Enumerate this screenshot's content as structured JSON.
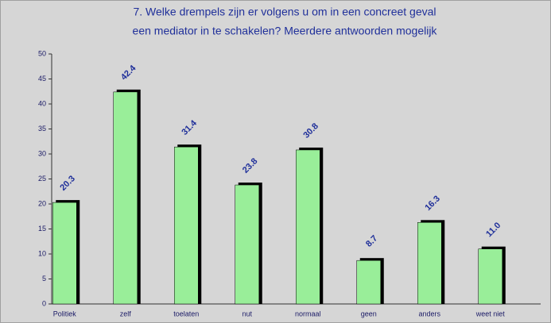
{
  "chart_data": {
    "type": "bar",
    "title": [
      "7. Welke drempels zijn er volgens u om in een concreet geval",
      "een mediator in te schakelen? Meerdere antwoorden mogelijk"
    ],
    "categories": [
      "Politiek",
      "zelf",
      "toelaten",
      "nut",
      "normaal",
      "geen",
      "anders",
      "weet niet"
    ],
    "values": [
      20.3,
      42.4,
      31.4,
      23.8,
      30.8,
      8.7,
      16.3,
      11
    ],
    "value_labels": [
      "20.3",
      "42.4",
      "31.4",
      "23.8",
      "30.8",
      "8.7",
      "16.3",
      "11.0"
    ],
    "color": "#99ee99",
    "ylim": [
      0,
      50
    ],
    "yticks": [
      0,
      5,
      10,
      15,
      20,
      25,
      30,
      35,
      40,
      45,
      50
    ]
  }
}
